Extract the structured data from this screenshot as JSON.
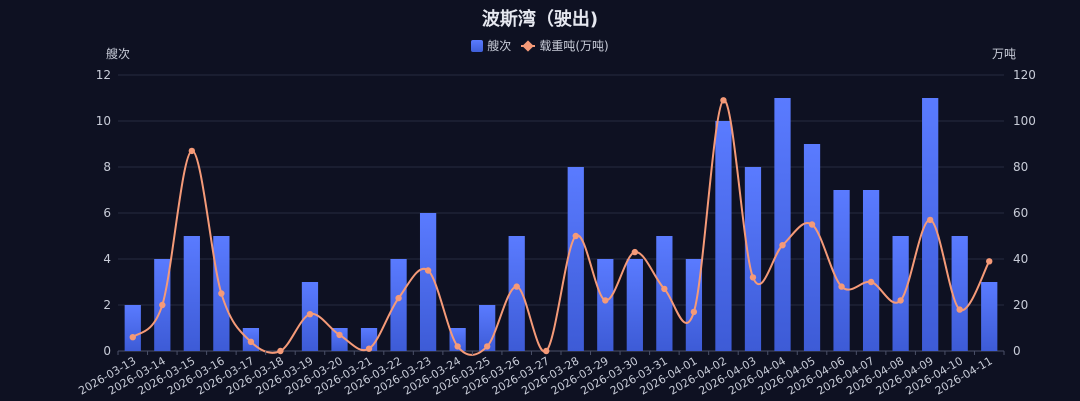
{
  "chart_data": {
    "type": "bar",
    "title": "波斯湾（驶出)",
    "ylabel_left": "艘次",
    "ylabel_right": "万吨",
    "ylim_left": [
      0,
      12
    ],
    "ylim_right": [
      0,
      120
    ],
    "yticks_left": [
      "0",
      "2",
      "4",
      "6",
      "8",
      "10",
      "12"
    ],
    "yticks_right": [
      "0",
      "20",
      "40",
      "60",
      "80",
      "100",
      "120"
    ],
    "grid": true,
    "legend_position": "top-center",
    "categories": [
      "2026-03-13",
      "2026-03-14",
      "2026-03-15",
      "2026-03-16",
      "2026-03-17",
      "2026-03-18",
      "2026-03-19",
      "2026-03-20",
      "2026-03-21",
      "2026-03-22",
      "2026-03-23",
      "2026-03-24",
      "2026-03-25",
      "2026-03-26",
      "2026-03-27",
      "2026-03-28",
      "2026-03-29",
      "2026-03-30",
      "2026-03-31",
      "2026-04-01",
      "2026-04-02",
      "2026-04-03",
      "2026-04-04",
      "2026-04-05",
      "2026-04-06",
      "2026-04-07",
      "2026-04-08",
      "2026-04-09",
      "2026-04-10",
      "2026-04-11"
    ],
    "series": [
      {
        "name": "艘次",
        "type": "bar",
        "axis": "left",
        "color": "#5a7bff",
        "values": [
          2,
          4,
          5,
          5,
          1,
          0,
          3,
          1,
          1,
          4,
          6,
          1,
          2,
          5,
          0,
          8,
          4,
          4,
          5,
          4,
          10,
          8,
          11,
          9,
          7,
          7,
          5,
          11,
          5,
          3
        ]
      },
      {
        "name": "载重吨(万吨)",
        "type": "line",
        "axis": "right",
        "color": "#f59a78",
        "values": [
          6,
          20,
          87,
          25,
          4,
          0,
          16,
          7,
          1,
          23,
          35,
          2,
          2,
          28,
          0,
          50,
          22,
          43,
          27,
          17,
          109,
          32,
          46,
          55,
          28,
          30,
          22,
          57,
          18,
          39
        ]
      }
    ]
  }
}
